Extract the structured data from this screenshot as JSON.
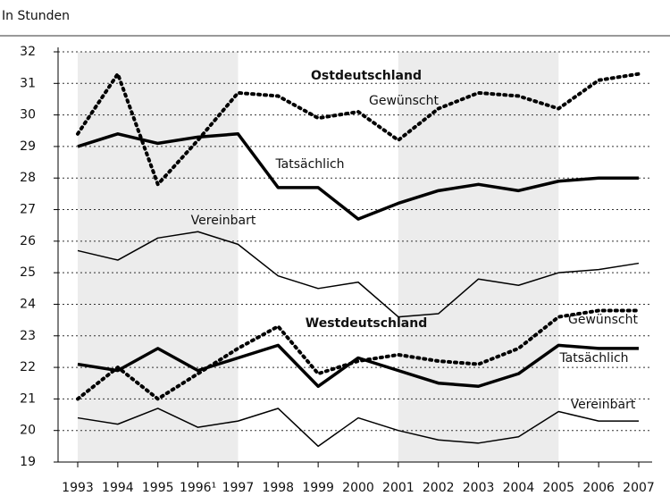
{
  "chart_data": {
    "type": "line",
    "unit_label": "In Stunden",
    "categories": [
      "1993",
      "1994",
      "1995",
      "1996¹",
      "1997",
      "1998",
      "1999",
      "2000",
      "2001",
      "2002",
      "2003",
      "2004",
      "2005",
      "2006",
      "2007"
    ],
    "ylim": [
      19,
      32
    ],
    "yticks": [
      19,
      20,
      21,
      22,
      23,
      24,
      25,
      26,
      27,
      28,
      29,
      30,
      31,
      32
    ],
    "grid": true,
    "groups": [
      {
        "name": "Ostdeutschland",
        "series": [
          {
            "name": "Gewünscht",
            "color": "#000000",
            "values": [
              29.4,
              31.3,
              27.8,
              29.2,
              30.7,
              30.6,
              29.9,
              30.1,
              29.2,
              30.2,
              30.7,
              30.6,
              30.2,
              31.1,
              31.3
            ]
          },
          {
            "name": "Tatsächlich",
            "color": "#000000",
            "values": [
              29.0,
              29.4,
              29.1,
              29.3,
              29.4,
              27.7,
              27.7,
              26.7,
              27.2,
              27.6,
              27.8,
              27.6,
              27.9,
              28.0,
              28.0
            ]
          },
          {
            "name": "Vereinbart",
            "color": "#000000",
            "values": [
              25.7,
              25.4,
              26.1,
              26.3,
              25.9,
              24.9,
              24.5,
              24.7,
              23.6,
              23.7,
              24.8,
              24.6,
              25.0,
              25.1,
              25.3
            ]
          }
        ]
      },
      {
        "name": "Westdeutschland",
        "series": [
          {
            "name": "Gewünscht",
            "color": "#000000",
            "values": [
              21.0,
              22.0,
              21.0,
              21.8,
              22.6,
              23.3,
              21.8,
              22.2,
              22.4,
              22.2,
              22.1,
              22.6,
              23.6,
              23.8,
              23.8
            ]
          },
          {
            "name": "Tatsächlich",
            "color": "#000000",
            "values": [
              22.1,
              21.9,
              22.6,
              21.9,
              22.3,
              22.7,
              21.4,
              22.3,
              21.9,
              21.5,
              21.4,
              21.8,
              22.7,
              22.6,
              22.6
            ]
          },
          {
            "name": "Vereinbart",
            "color": "#000000",
            "values": [
              20.4,
              20.2,
              20.7,
              20.1,
              20.3,
              20.7,
              19.5,
              20.4,
              20.0,
              19.7,
              19.6,
              19.8,
              20.6,
              20.3,
              20.3
            ]
          }
        ]
      }
    ]
  }
}
